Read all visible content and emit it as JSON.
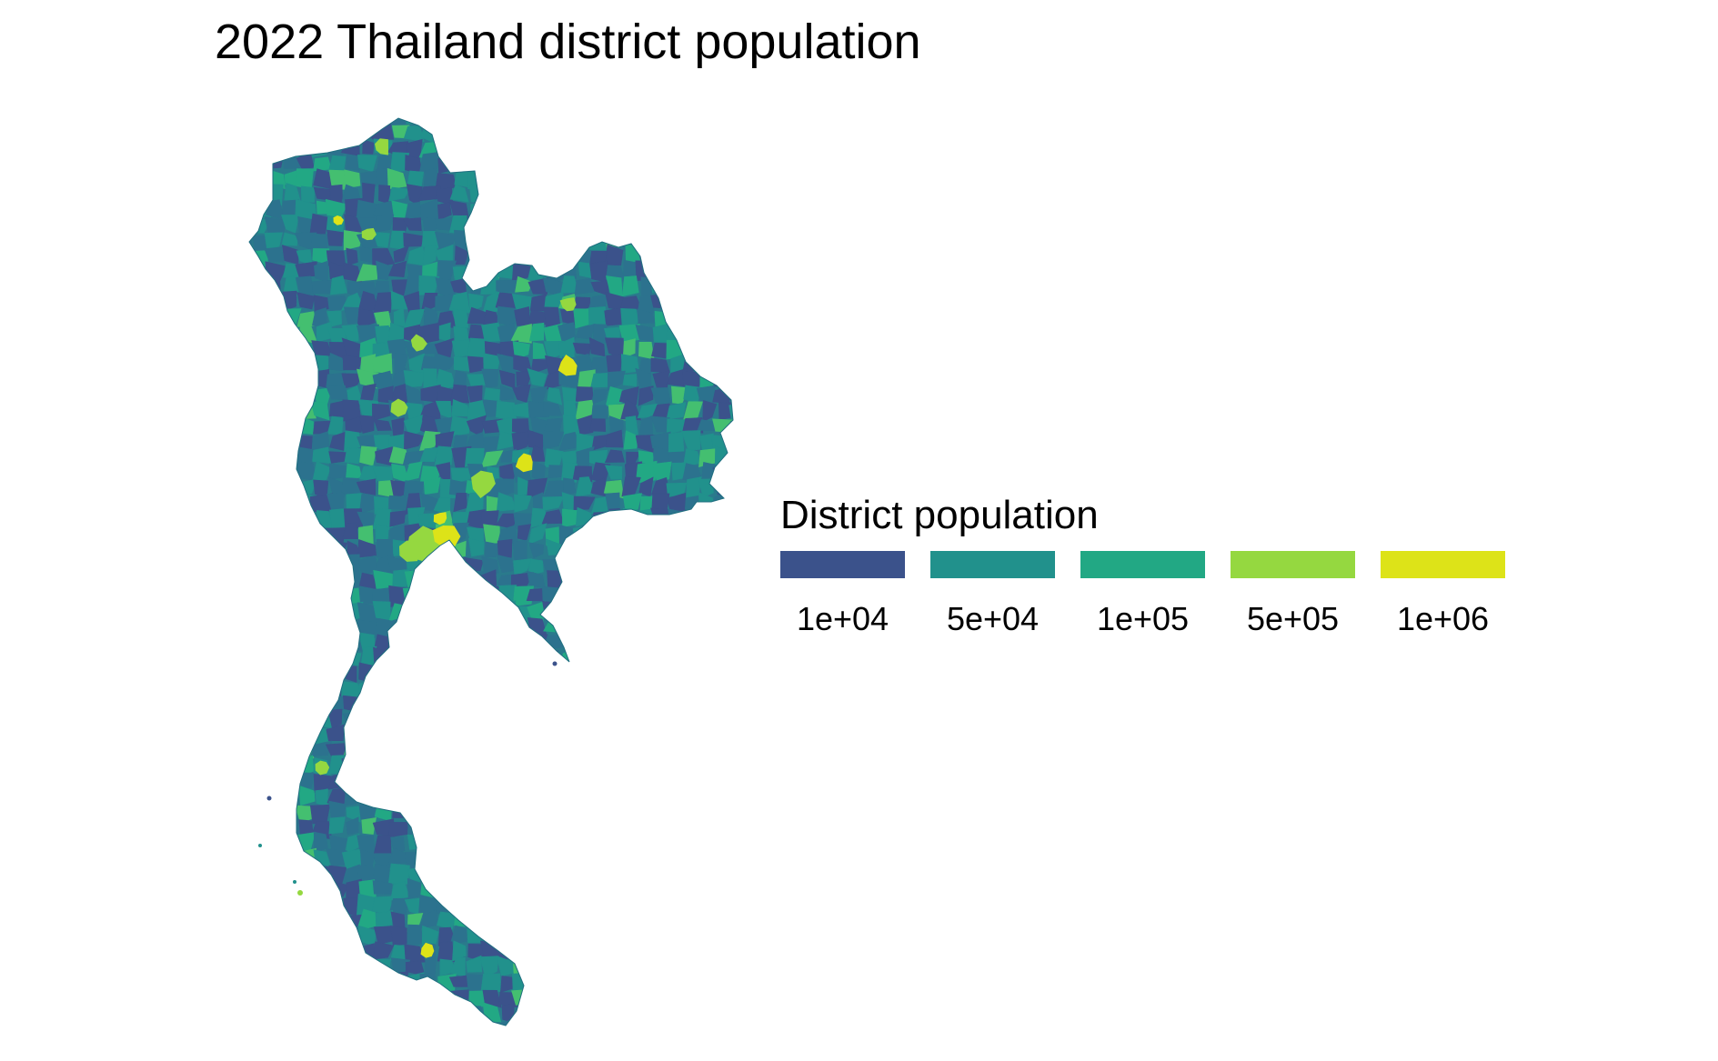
{
  "title": "2022 Thailand district population",
  "legend": {
    "title": "District population",
    "keys": [
      {
        "label": "1e+04",
        "color": "#3b528b"
      },
      {
        "label": "5e+04",
        "color": "#21918c"
      },
      {
        "label": "1e+05",
        "color": "#22a884"
      },
      {
        "label": "5e+05",
        "color": "#95d840"
      },
      {
        "label": "1e+06",
        "color": "#dde318"
      }
    ]
  },
  "map": {
    "region": "Thailand",
    "fill_base": "#2a7a8c",
    "palette": [
      "#3b528b",
      "#2c728e",
      "#21918c",
      "#22a884",
      "#44bf70",
      "#95d840",
      "#dde318"
    ]
  }
}
